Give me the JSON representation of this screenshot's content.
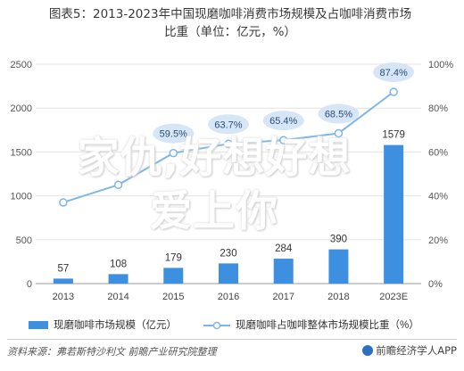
{
  "header": {
    "title_line1": "图表5：2013-2023年中国现磨咖啡消费市场规模及占咖啡消费市场",
    "title_line2": "比重（单位：亿元，%）"
  },
  "overlay_text": {
    "line1": "家仇,好想好想",
    "line2": "爱上你"
  },
  "chart_data": {
    "type": "bar",
    "categories": [
      "2013",
      "2014",
      "2015",
      "2016",
      "2017",
      "2018",
      "2023E"
    ],
    "series": [
      {
        "name": "现磨咖啡市场规模（亿元）",
        "kind": "bar",
        "axis": "left",
        "values": [
          57,
          108,
          179,
          230,
          284,
          390,
          1579
        ]
      },
      {
        "name": "现磨咖啡占咖啡整体市场规模比重（%）",
        "kind": "line",
        "axis": "right",
        "values": [
          37,
          45,
          59.5,
          63.7,
          65.4,
          68.5,
          87.4
        ]
      }
    ],
    "value_labels": {
      "bar": [
        "57",
        "108",
        "179",
        "230",
        "284",
        "390",
        "1579"
      ],
      "line": [
        "",
        "",
        "59.5%",
        "63.7%",
        "65.4%",
        "68.5%",
        "87.4%"
      ]
    },
    "y_left": {
      "ylim": [
        0,
        2500
      ],
      "ticks": [
        "0",
        "500",
        "1000",
        "1500",
        "2000",
        "2500"
      ]
    },
    "y_right": {
      "ylim": [
        0,
        100
      ],
      "ticks": [
        "0%",
        "20%",
        "40%",
        "60%",
        "80%",
        "100%"
      ]
    },
    "legend_position": "bottom",
    "colors": {
      "bar": "#3d8fe0",
      "line": "#7fb6e8",
      "marker_fill": "#ffffff",
      "label_bubble": "#d6e6f6"
    }
  },
  "footer": {
    "source": "资料来源：弗若斯特沙利文 前瞻产业研究院整理",
    "brand": "前瞻经济学人APP"
  }
}
